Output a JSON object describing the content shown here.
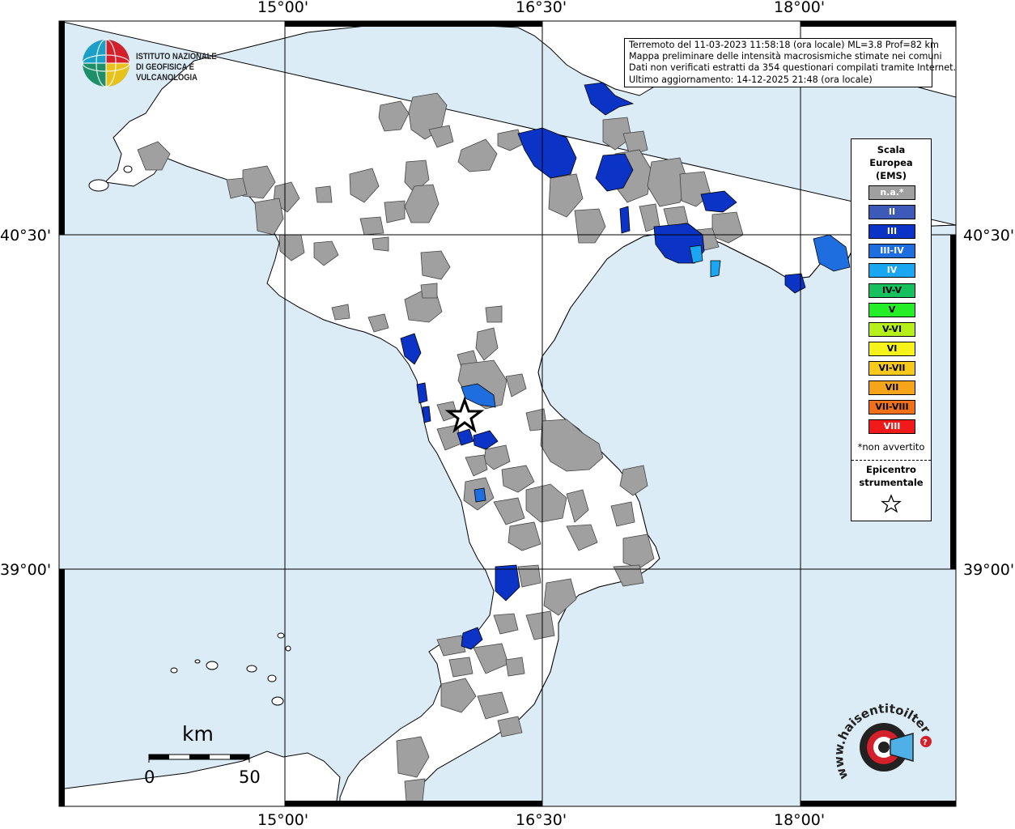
{
  "info": {
    "line1": "Terremoto del 11-03-2023 11:58:18 (ora locale) ML=3.8 Prof=82 km",
    "line2": "Mappa preliminare delle intensità macrosismiche stimate nei comuni",
    "line3": "Dati non verificati estratti da 354 questionari compilati tramite Internet.",
    "line4": "Ultimo aggiornamento: 14-12-2025 21:48 (ora locale)"
  },
  "logo": {
    "line1": "ISTITUTO NAZIONALE",
    "line2": "DI GEOFISICA E VULCANOLOGIA"
  },
  "axes": {
    "top": [
      "15°00'",
      "16°30'",
      "18°00'"
    ],
    "bottom": [
      "15°00'",
      "16°30'",
      "18°00'"
    ],
    "left": [
      "40°30'",
      "39°00'"
    ],
    "right": [
      "40°30'",
      "39°00'"
    ]
  },
  "legend": {
    "title1": "Scala",
    "title2": "Europea",
    "title3": "(EMS)",
    "items": [
      {
        "label": "n.a.*",
        "color": "#a0a0a0",
        "text_color": "#ffffff"
      },
      {
        "label": "II",
        "color": "#3d5ab8",
        "text_color": "#ffffff"
      },
      {
        "label": "III",
        "color": "#0b34c7",
        "text_color": "#ffffff"
      },
      {
        "label": "III-IV",
        "color": "#1f6ee0",
        "text_color": "#ffffff"
      },
      {
        "label": "IV",
        "color": "#1aa6f0",
        "text_color": "#ffffff"
      },
      {
        "label": "IV-V",
        "color": "#16c05c",
        "text_color": "#000000"
      },
      {
        "label": "V",
        "color": "#26ee26",
        "text_color": "#000000"
      },
      {
        "label": "V-VI",
        "color": "#b6f01a",
        "text_color": "#000000"
      },
      {
        "label": "VI",
        "color": "#f6f21a",
        "text_color": "#000000"
      },
      {
        "label": "VI-VII",
        "color": "#f6c91a",
        "text_color": "#000000"
      },
      {
        "label": "VII",
        "color": "#f6a51a",
        "text_color": "#000000"
      },
      {
        "label": "VII-VIII",
        "color": "#f0701a",
        "text_color": "#000000"
      },
      {
        "label": "VIII",
        "color": "#f01a1a",
        "text_color": "#ffffff"
      }
    ],
    "note": "*non avvertito",
    "epi1": "Epicentro",
    "epi2": "strumentale"
  },
  "scale": {
    "unit": "km",
    "label_start": "0",
    "label_end": "50"
  },
  "colors": {
    "sea": "#dcecf7",
    "land": "#ffffff",
    "not_felt": "#a0a0a0",
    "ems_III": "#0b34c7",
    "ems_III_IV": "#1f6ee0",
    "ems_IV": "#1aa6f0"
  },
  "watermark": {
    "text": "www.haisentitoilterremoto.it"
  }
}
